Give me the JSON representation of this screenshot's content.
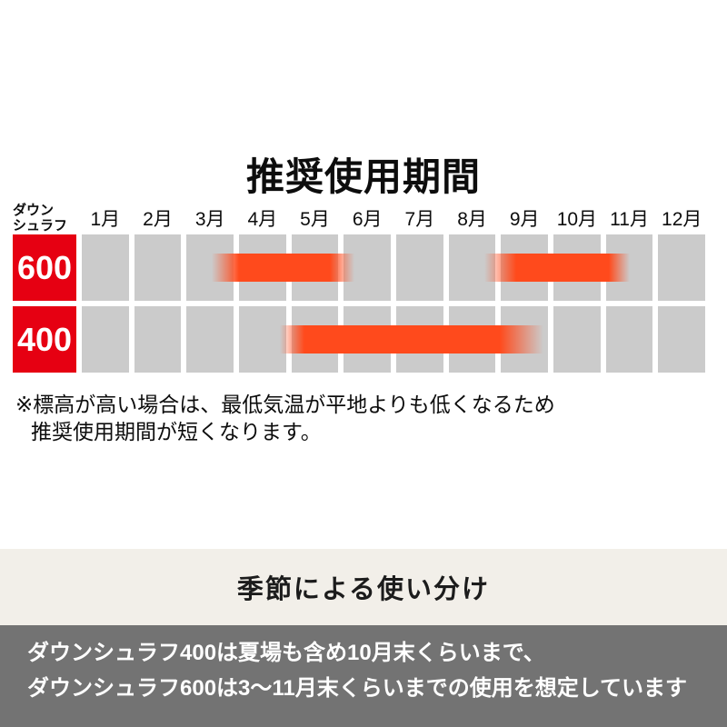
{
  "title": "推奨使用期間",
  "chart": {
    "header_label_line1": "ダウン",
    "header_label_line2": "シュラフ",
    "months": [
      "1月",
      "2月",
      "3月",
      "4月",
      "5月",
      "6月",
      "7月",
      "8月",
      "9月",
      "10月",
      "11月",
      "12月"
    ],
    "rows": [
      {
        "label": "600"
      },
      {
        "label": "400"
      }
    ],
    "colors": {
      "row_label_bg": "#e60012",
      "bar": "#ff4a1c",
      "cell": "#cbcbcb",
      "season_band_bg": "#f2efe9",
      "footer_box_bg": "#737373"
    }
  },
  "note": {
    "line1": "※標高が高い場合は、最低気温が平地よりも低くなるため",
    "line2": "推奨使用期間が短くなります。"
  },
  "season_section": {
    "heading": "季節による使い分け"
  },
  "footer": {
    "line1": "ダウンシュラフ400は夏場も含め10月末くらいまで、",
    "line2": "ダウンシュラフ600は3〜11月末くらいまでの使用を想定しています"
  },
  "chart_data": {
    "type": "bar",
    "subtype": "horizontal-range (gantt-style recommended-use calendar)",
    "title": "推奨使用期間",
    "categories": [
      "600",
      "400"
    ],
    "x_ticks": [
      "1月",
      "2月",
      "3月",
      "4月",
      "5月",
      "6月",
      "7月",
      "8月",
      "9月",
      "10月",
      "11月",
      "12月"
    ],
    "x_range_months": [
      1,
      13
    ],
    "grid": "12 gray month cells per row",
    "legend": "none",
    "series": [
      {
        "name": "600",
        "ranges": [
          {
            "fade_start_month": 3.5,
            "solid_start_month": 4.0,
            "solid_end_month": 5.8,
            "fade_end_month": 6.2
          },
          {
            "fade_start_month": 8.7,
            "solid_start_month": 9.3,
            "solid_end_month": 11.0,
            "fade_end_month": 11.5
          }
        ]
      },
      {
        "name": "400",
        "ranges": [
          {
            "fade_start_month": 4.8,
            "solid_start_month": 5.2,
            "solid_end_month": 9.0,
            "fade_end_month": 9.8
          }
        ]
      }
    ]
  }
}
